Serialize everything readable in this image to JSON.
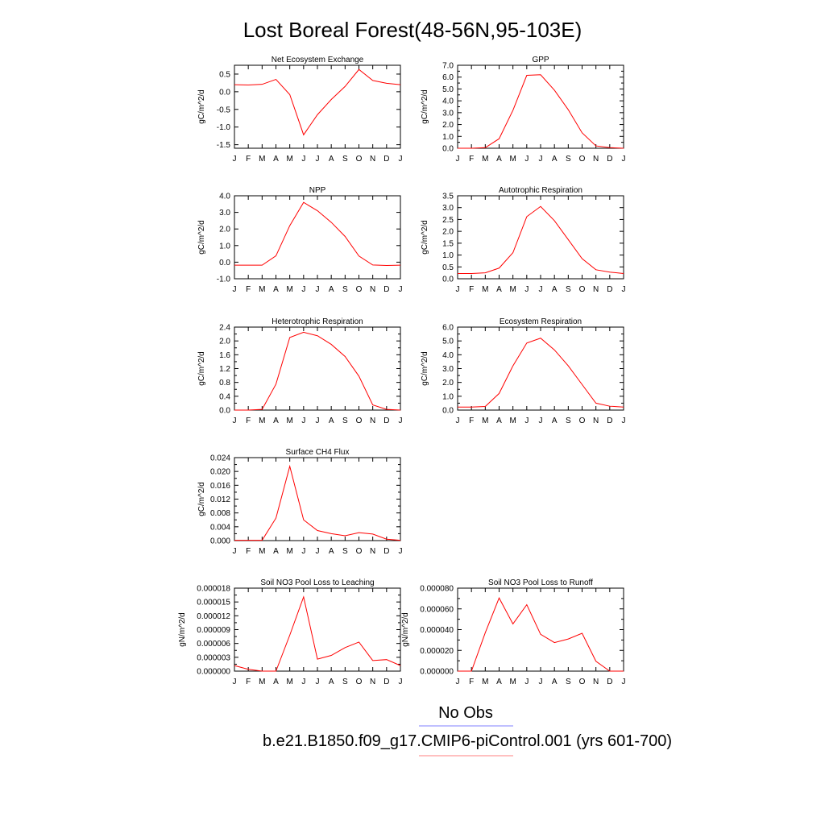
{
  "title": "Lost Boreal Forest(48-56N,95-103E)",
  "months": [
    "J",
    "F",
    "M",
    "A",
    "M",
    "J",
    "J",
    "A",
    "S",
    "O",
    "N",
    "D",
    "J"
  ],
  "legend": {
    "obs_label": "No Obs",
    "obs_color": "#8080ff",
    "model_label": "b.e21.B1850.f09_g17.CMIP6-piControl.001 (yrs 601-700)",
    "model_color": "#ff8080"
  },
  "chart_data": [
    {
      "type": "line",
      "title": "Net Ecosystem Exchange",
      "ylabel": "gC/m^2/d",
      "ylim": [
        -1.6,
        0.75
      ],
      "yticks": [
        -1.5,
        -1.0,
        -0.5,
        0.0,
        0.5
      ],
      "ytick_labels": [
        "-1.5",
        "-1.0",
        "-0.5",
        "0.0",
        "0.5"
      ],
      "series": [
        {
          "color": "#ff0000",
          "values": [
            0.2,
            0.19,
            0.21,
            0.35,
            -0.08,
            -1.22,
            -0.65,
            -0.22,
            0.15,
            0.63,
            0.32,
            0.24,
            0.2
          ]
        }
      ]
    },
    {
      "type": "line",
      "title": "GPP",
      "ylabel": "gC/m^2/d",
      "ylim": [
        0.0,
        7.0
      ],
      "yticks": [
        0.0,
        0.5,
        1.0,
        1.5,
        2.0,
        2.5,
        3.0,
        3.5,
        4.0,
        4.5,
        5.0,
        5.5,
        6.0,
        6.5,
        7.0
      ],
      "ytick_labels": [
        "0.0",
        "",
        "1.0",
        "",
        "2.0",
        "",
        "3.0",
        "",
        "4.0",
        "",
        "5.0",
        "",
        "6.0",
        "",
        "7.0"
      ],
      "series": [
        {
          "color": "#ff0000",
          "values": [
            0.0,
            0.0,
            0.05,
            0.8,
            3.2,
            6.15,
            6.2,
            4.9,
            3.25,
            1.3,
            0.2,
            0.05,
            0.0
          ]
        }
      ]
    },
    {
      "type": "line",
      "title": "NPP",
      "ylabel": "gC/m^2/d",
      "ylim": [
        -1.0,
        4.0
      ],
      "yticks": [
        -1.0,
        0.0,
        1.0,
        2.0,
        3.0,
        4.0
      ],
      "ytick_labels": [
        "-1.0",
        "0.0",
        "1.0",
        "2.0",
        "3.0",
        "4.0"
      ],
      "series": [
        {
          "color": "#ff0000",
          "values": [
            -0.18,
            -0.18,
            -0.18,
            0.38,
            2.2,
            3.6,
            3.1,
            2.4,
            1.55,
            0.37,
            -0.17,
            -0.2,
            -0.18
          ]
        }
      ]
    },
    {
      "type": "line",
      "title": "Autotrophic Respiration",
      "ylabel": "gC/m^2/d",
      "ylim": [
        0.0,
        3.5
      ],
      "yticks": [
        0.0,
        0.5,
        1.0,
        1.5,
        2.0,
        2.5,
        3.0,
        3.5
      ],
      "ytick_labels": [
        "0.0",
        "0.5",
        "1.0",
        "1.5",
        "2.0",
        "2.5",
        "3.0",
        "3.5"
      ],
      "series": [
        {
          "color": "#ff0000",
          "values": [
            0.22,
            0.22,
            0.25,
            0.45,
            1.1,
            2.62,
            3.05,
            2.45,
            1.65,
            0.85,
            0.38,
            0.28,
            0.22
          ]
        }
      ]
    },
    {
      "type": "line",
      "title": "Heterotrophic Respiration",
      "ylabel": "gC/m^2/d",
      "ylim": [
        0.0,
        2.4
      ],
      "yticks": [
        0.0,
        0.2,
        0.4,
        0.6,
        0.8,
        1.0,
        1.2,
        1.4,
        1.6,
        1.8,
        2.0,
        2.2,
        2.4
      ],
      "ytick_labels": [
        "0.0",
        "",
        "0.4",
        "",
        "0.8",
        "",
        "1.2",
        "",
        "1.6",
        "",
        "2.0",
        "",
        "2.4"
      ],
      "series": [
        {
          "color": "#ff0000",
          "values": [
            0.0,
            0.0,
            0.02,
            0.75,
            2.1,
            2.25,
            2.15,
            1.9,
            1.55,
            0.98,
            0.15,
            0.02,
            0.0
          ]
        }
      ]
    },
    {
      "type": "line",
      "title": "Ecosystem Respiration",
      "ylabel": "gC/m^2/d",
      "ylim": [
        0.0,
        6.0
      ],
      "yticks": [
        0.0,
        0.5,
        1.0,
        1.5,
        2.0,
        2.5,
        3.0,
        3.5,
        4.0,
        4.5,
        5.0,
        5.5,
        6.0
      ],
      "ytick_labels": [
        "0.0",
        "",
        "1.0",
        "",
        "2.0",
        "",
        "3.0",
        "",
        "4.0",
        "",
        "5.0",
        "",
        "6.0"
      ],
      "series": [
        {
          "color": "#ff0000",
          "values": [
            0.22,
            0.22,
            0.26,
            1.2,
            3.2,
            4.85,
            5.2,
            4.35,
            3.2,
            1.85,
            0.5,
            0.28,
            0.22
          ]
        }
      ]
    },
    {
      "type": "line",
      "title": "Surface CH4 Flux",
      "ylabel": "gC/m^2/d",
      "ylim": [
        0.0,
        0.024
      ],
      "yticks": [
        0.0,
        0.002,
        0.004,
        0.006,
        0.008,
        0.01,
        0.012,
        0.014,
        0.016,
        0.018,
        0.02,
        0.022,
        0.024
      ],
      "ytick_labels": [
        "0.000",
        "",
        "0.004",
        "",
        "0.008",
        "",
        "0.012",
        "",
        "0.016",
        "",
        "0.020",
        "",
        "0.024"
      ],
      "series": [
        {
          "color": "#ff0000",
          "values": [
            0.0001,
            0.0001,
            0.0001,
            0.0065,
            0.0215,
            0.006,
            0.0029,
            0.002,
            0.0014,
            0.0023,
            0.0019,
            0.0004,
            0.0001
          ]
        }
      ]
    },
    null,
    {
      "type": "line",
      "title": "Soil NO3 Pool Loss to Leaching",
      "ylabel": "gN/m^2/d",
      "ylim": [
        0.0,
        1.8e-05
      ],
      "yticks": [
        0.0,
        1.5e-06,
        3e-06,
        4.5e-06,
        6e-06,
        7.5e-06,
        9e-06,
        1.05e-05,
        1.2e-05,
        1.35e-05,
        1.5e-05,
        1.65e-05,
        1.8e-05
      ],
      "ytick_labels": [
        "0.000000",
        "",
        "0.000003",
        "",
        "0.000006",
        "",
        "0.000009",
        "",
        "0.000012",
        "",
        "0.000015",
        "",
        "0.000018"
      ],
      "series": [
        {
          "color": "#ff0000",
          "values": [
            1.2e-06,
            4e-07,
            0.0,
            0.0,
            7.8e-06,
            1.61e-05,
            2.6e-06,
            3.4e-06,
            5.1e-06,
            6.3e-06,
            2.3e-06,
            2.5e-06,
            1.2e-06
          ]
        }
      ]
    },
    {
      "type": "line",
      "title": "Soil NO3 Pool Loss to Runoff",
      "ylabel": "gN/m^2/d",
      "ylim": [
        0.0,
        8e-05
      ],
      "yticks": [
        0.0,
        1e-05,
        2e-05,
        3e-05,
        4e-05,
        5e-05,
        6e-05,
        7e-05,
        8e-05
      ],
      "ytick_labels": [
        "0.000000",
        "",
        "0.000020",
        "",
        "0.000040",
        "",
        "0.000060",
        "",
        "0.000080"
      ],
      "series": [
        {
          "color": "#ff0000",
          "values": [
            0.0,
            0.0,
            3.7e-05,
            7.05e-05,
            4.55e-05,
            6.4e-05,
            3.55e-05,
            2.75e-05,
            3.1e-05,
            3.65e-05,
            9.5e-06,
            0.0,
            0.0
          ]
        }
      ]
    }
  ]
}
